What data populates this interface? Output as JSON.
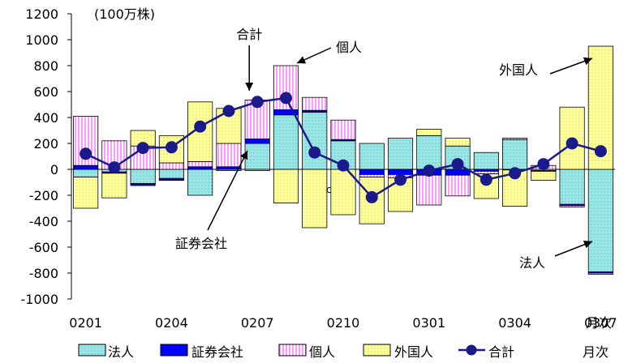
{
  "chart_data": {
    "type": "bar",
    "subtype": "stacked-bar-with-line",
    "unit_label": "(100万株)",
    "xlabel": "月次",
    "ylim": [
      -1000,
      1200
    ],
    "ytick_step": 200,
    "categories": [
      "0201",
      "0202",
      "0203",
      "0204",
      "0205",
      "0206",
      "0207",
      "0208",
      "0209",
      "0210",
      "0211",
      "0212",
      "0301",
      "0302",
      "0303",
      "0304",
      "0305",
      "0306",
      "0307"
    ],
    "xtick_labels": [
      "0201",
      "0204",
      "0207",
      "0210",
      "0301",
      "0304",
      "0307"
    ],
    "series": [
      {
        "name": "法人",
        "kind": "bar",
        "color": "#99e6e6",
        "values": [
          -60,
          -20,
          -110,
          -70,
          -200,
          -10,
          200,
          420,
          440,
          220,
          200,
          240,
          260,
          180,
          130,
          230,
          -10,
          -270,
          -790
        ]
      },
      {
        "name": "証券会社",
        "kind": "bar",
        "color": "#0000ff",
        "values": [
          30,
          -10,
          -15,
          -15,
          20,
          20,
          35,
          40,
          15,
          10,
          -40,
          -40,
          -45,
          -45,
          -15,
          -5,
          -5,
          -10,
          -10
        ]
      },
      {
        "name": "個人",
        "kind": "bar",
        "color": "#ff99ff",
        "values": [
          380,
          220,
          180,
          50,
          40,
          180,
          300,
          340,
          100,
          150,
          -20,
          -25,
          -230,
          -160,
          -20,
          10,
          30,
          -10,
          -10
        ]
      },
      {
        "name": "外国人",
        "kind": "bar",
        "color": "#ffff99",
        "values": [
          -240,
          -190,
          120,
          210,
          460,
          270,
          -10,
          -260,
          -450,
          -350,
          -360,
          -260,
          50,
          60,
          -190,
          -280,
          -70,
          480,
          950
        ]
      },
      {
        "name": "合計",
        "kind": "line",
        "color": "#1a1a8c",
        "values": [
          120,
          15,
          165,
          170,
          330,
          450,
          520,
          550,
          130,
          30,
          -215,
          -80,
          -10,
          40,
          -80,
          -30,
          40,
          200,
          140
        ]
      }
    ],
    "annotations": [
      {
        "text": "合計",
        "target_category": "0207"
      },
      {
        "text": "個人",
        "target_category": "0208"
      },
      {
        "text": "外国人",
        "target_category": "0307"
      },
      {
        "text": "証券会社",
        "target_category": "0207"
      },
      {
        "text": "法人",
        "target_category": "0307"
      },
      {
        "text": "c",
        "target_category": "0209"
      }
    ],
    "legend_position": "bottom",
    "grid": false
  }
}
